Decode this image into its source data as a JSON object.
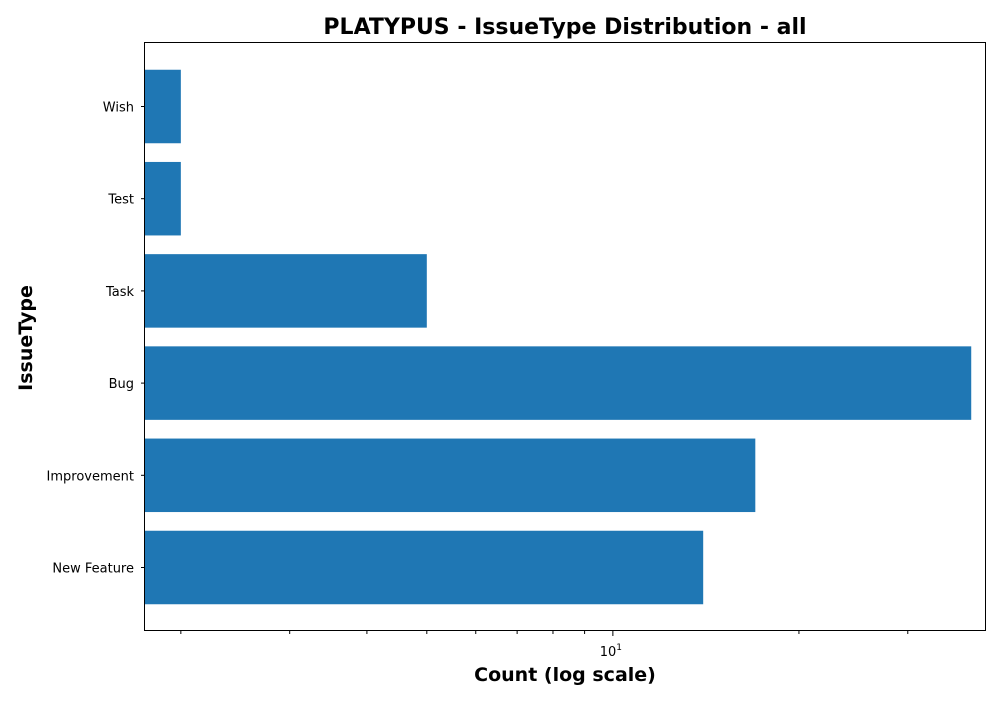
{
  "chart_data": {
    "type": "bar",
    "orientation": "horizontal",
    "title": "PLATYPUS - IssueType Distribution - all",
    "xlabel": "Count (log scale)",
    "ylabel": "IssueType",
    "xscale": "log",
    "xlim": [
      1.75,
      40
    ],
    "x_major_ticks": [
      {
        "value": 10,
        "base": "10",
        "exponent": "1"
      }
    ],
    "x_minor_ticks": [
      2,
      3,
      4,
      5,
      6,
      7,
      8,
      9,
      20,
      30
    ],
    "categories": [
      "New Feature",
      "Improvement",
      "Bug",
      "Task",
      "Test",
      "Wish"
    ],
    "values": [
      14,
      17,
      38,
      5,
      2,
      2
    ],
    "color": "#1f77b4",
    "grid": false,
    "legend": "none"
  }
}
